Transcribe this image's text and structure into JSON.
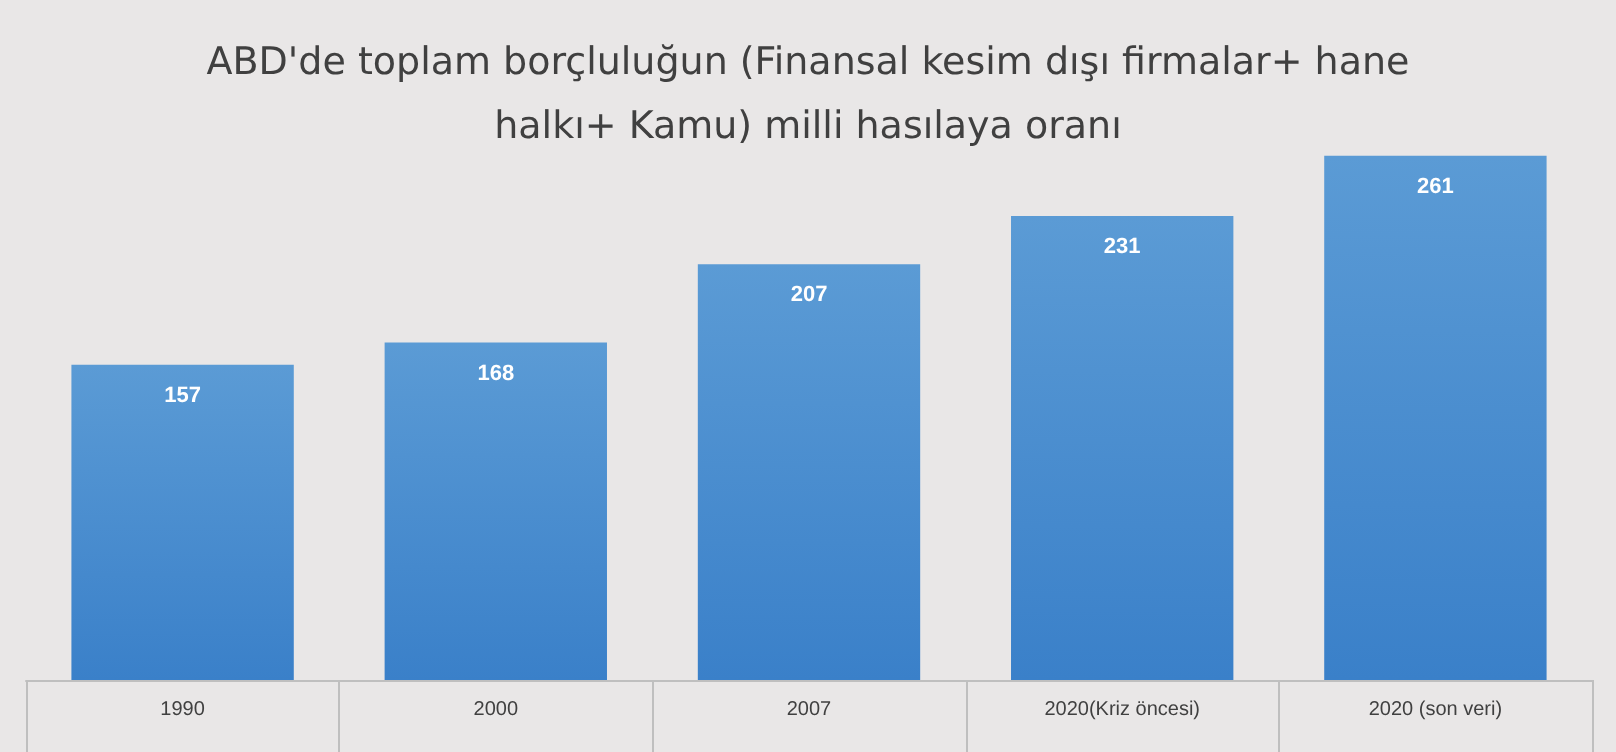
{
  "chart_data": {
    "type": "bar",
    "title": "ABD'de toplam borçluluğun (Finansal kesim dışı firmalar+ hane\nhalkı+ Kamu) milli hasılaya oranı",
    "categories": [
      "1990",
      "2000",
      "2007",
      "2020(Kriz öncesi)",
      "2020 (son veri)"
    ],
    "values": [
      157,
      168,
      207,
      231,
      261
    ],
    "color": "#5b9bd5",
    "data_labels": true
  }
}
